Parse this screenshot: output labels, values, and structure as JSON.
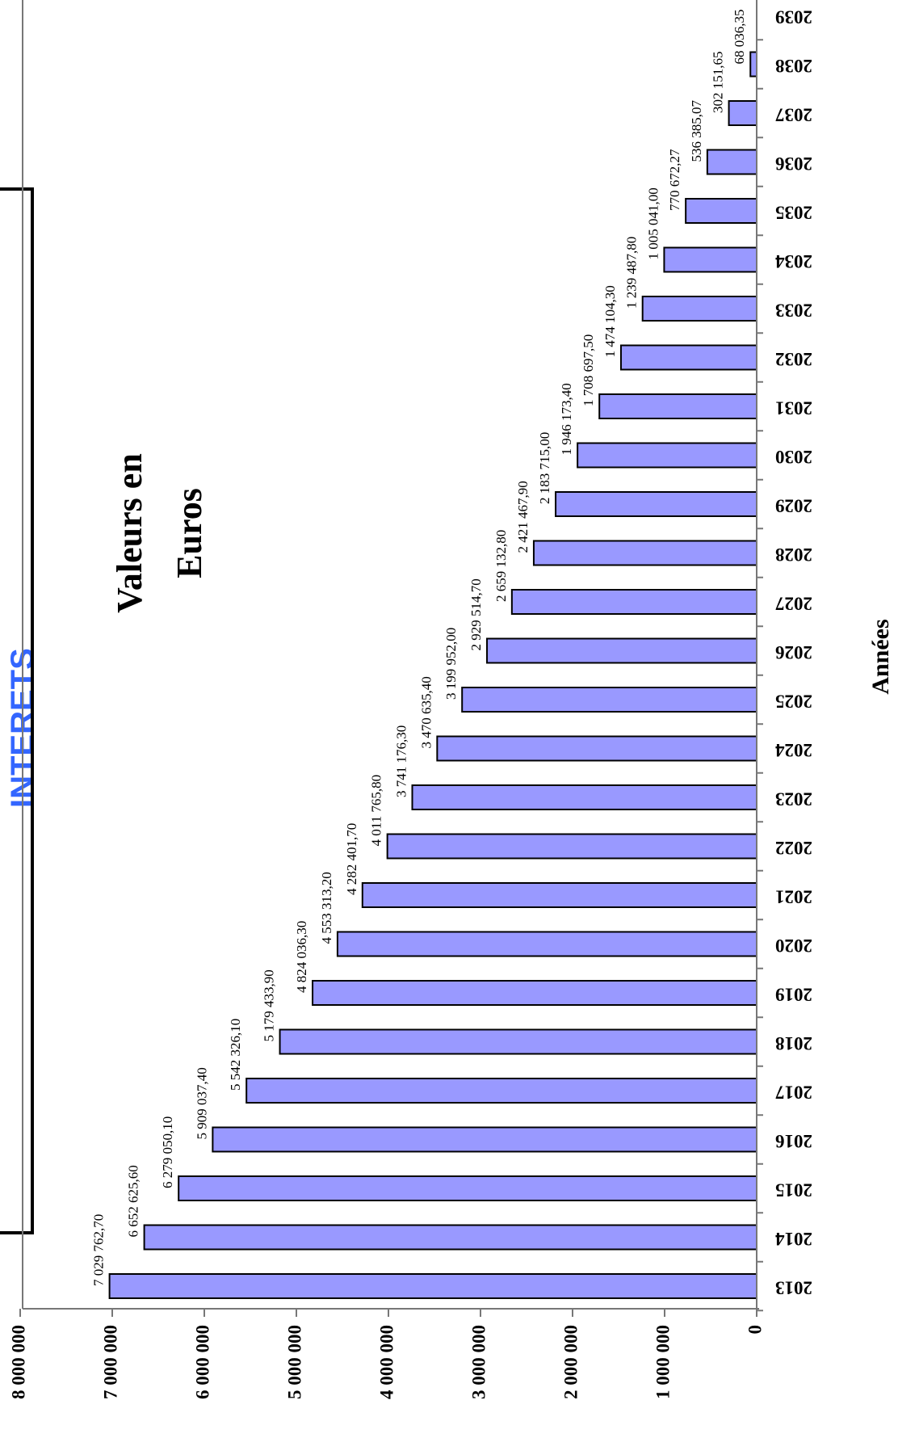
{
  "chart_data": {
    "type": "bar",
    "orientation": "rotated 90° clockwise (vertical bars, image rotated)",
    "title": "",
    "partial_heading": "INTERETS",
    "value_note": [
      "Valeurs en",
      "Euros"
    ],
    "xlabel": "Années",
    "ylabel": "",
    "ylim": [
      0,
      8000000
    ],
    "yticks": [
      "0",
      "1 000 000",
      "2 000 000",
      "3 000 000",
      "4 000 000",
      "5 000 000",
      "6 000 000",
      "7 000 000",
      "8 000 000"
    ],
    "ytick_values": [
      0,
      1000000,
      2000000,
      3000000,
      4000000,
      5000000,
      6000000,
      7000000,
      8000000
    ],
    "categories": [
      "2013",
      "2014",
      "2015",
      "2016",
      "2017",
      "2018",
      "2019",
      "2020",
      "2021",
      "2022",
      "2023",
      "2024",
      "2025",
      "2026",
      "2027",
      "2028",
      "2029",
      "2030",
      "2031",
      "2032",
      "2033",
      "2034",
      "2035",
      "2036",
      "2037",
      "2038",
      "2039"
    ],
    "values": [
      7029762.7,
      6652625.6,
      6279050.1,
      5909037.4,
      5542326.1,
      5179433.9,
      4824036.3,
      4553313.2,
      4282401.7,
      4011765.8,
      3741176.3,
      3470635.4,
      3199952.0,
      2929514.7,
      2659132.8,
      2421467.9,
      2183715.0,
      1946173.4,
      1708697.5,
      1474104.3,
      1239487.8,
      1005041.0,
      770672.27,
      536385.07,
      302151.65,
      68036.35,
      0
    ],
    "data_labels": [
      "7 029 762,70",
      "6 652 625,60",
      "6 279 050,10",
      "5 909 037,40",
      "5 542 326,10",
      "5 179 433,90",
      "4 824 036,30",
      "4 553 313,20",
      "4 282 401,70",
      "4 011 765,80",
      "3 741 176,30",
      "3 470 635,40",
      "3 199 952,00",
      "2 929 514,70",
      "2 659 132,80",
      "2 421 467,90",
      "2 183 715,00",
      "1 946 173,40",
      "1 708 697,50",
      "1 474 104,30",
      "1 239 487,80",
      "1 005 041,00",
      "770 672,27",
      "536 385,07",
      "302 151,65",
      "68 036,35",
      ""
    ],
    "grid": false,
    "colors": {
      "bar_fill": "#9999ff",
      "bar_stroke": "#000000",
      "heading": "#3366ff"
    }
  }
}
